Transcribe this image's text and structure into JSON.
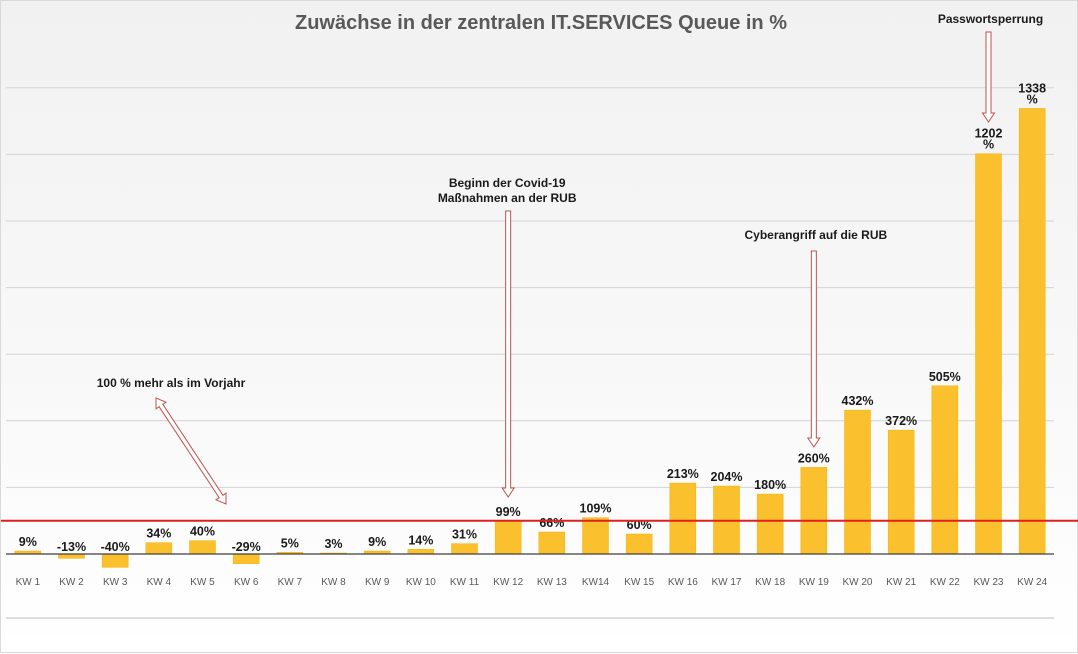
{
  "colors": {
    "bar": "#FBC02D",
    "bar_stroke": "#F2B100",
    "reference_line": "#E02020",
    "arrow_stroke": "#C0504D",
    "gridline": "#d4d4d4",
    "baseline": "#404040"
  },
  "chart_data": {
    "type": "bar",
    "title": "Zuwächse in der zentralen IT.SERVICES Queue in %",
    "xlabel": "",
    "ylabel": "",
    "ylim": [
      -100,
      1500
    ],
    "grid": true,
    "categories": [
      "KW 1",
      "KW 2",
      "KW 3",
      "KW 4",
      "KW 5",
      "KW 6",
      "KW 7",
      "KW 8",
      "KW 9",
      "KW 10",
      "KW 11",
      "KW 12",
      "KW 13",
      "KW14",
      "KW 15",
      "KW 16",
      "KW 17",
      "KW 18",
      "KW 19",
      "KW 20",
      "KW 21",
      "KW 22",
      "KW 23",
      "KW 24"
    ],
    "values": [
      9,
      -13,
      -40,
      34,
      40,
      -29,
      5,
      3,
      9,
      14,
      31,
      99,
      66,
      109,
      60,
      213,
      204,
      180,
      260,
      432,
      372,
      505,
      1202,
      1338
    ],
    "data_labels": [
      "9%",
      "-13%",
      "-40%",
      "34%",
      "40%",
      "-29%",
      "5%",
      "3%",
      "9%",
      "14%",
      "31%",
      "99%",
      "66%",
      "109%",
      "60%",
      "213%",
      "204%",
      "180%",
      "260%",
      "432%",
      "372%",
      "505%",
      "1202\n%",
      "1338\n%"
    ],
    "reference_line": {
      "value": 100
    },
    "annotations": [
      {
        "text": "100 % mehr als im Vorjahr",
        "lines": [
          "100 % mehr als im Vorjahr"
        ],
        "target": "reference_line"
      },
      {
        "text": "Beginn der Covid-19 Maßnahmen an der RUB",
        "lines": [
          "Beginn der Covid-19",
          "Maßnahmen an der RUB"
        ],
        "target": "KW 12"
      },
      {
        "text": "Cyberangriff auf die RUB",
        "lines": [
          "Cyberangriff auf die RUB"
        ],
        "target": "KW 19"
      },
      {
        "text": "Passwortsperrung",
        "lines": [
          "Passwortsperrung"
        ],
        "target": "KW 23"
      }
    ]
  }
}
